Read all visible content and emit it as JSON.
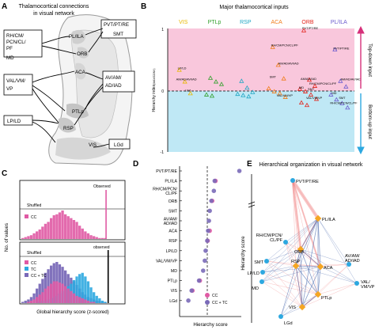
{
  "panels": {
    "a": {
      "letter": "A",
      "title_line1": "Thalamocortical connections",
      "title_line2": "in visual network",
      "thalamic_nuclei": [
        "PVT/PT/RE",
        "SMT",
        "RH/CM/PCN/CL/PF",
        "MD",
        "VAL/VM/VP",
        "AV/AM/AD/IAD",
        "LP/LD",
        "LGd"
      ],
      "cortical_areas": [
        "PL/ILA",
        "ORB",
        "ACA",
        "RSP",
        "PTLp",
        "VIS"
      ]
    },
    "b": {
      "letter": "B",
      "title": "Major thalamocortical inputs",
      "ylabel": "Hierarchy index",
      "ylabel_sub": "(MAX/CONV)",
      "top_label": "Top-down input",
      "bottom_label": "Bottom-up input",
      "colors": {
        "top_band": "#f9c7dc",
        "bottom_band": "#bfe8f5",
        "arrow": "#d6307a",
        "arrow2": "#2da8e0"
      },
      "chart_data": {
        "type": "scatter",
        "ylim": [
          -1,
          1
        ],
        "yticks": [
          "1",
          "0",
          "-1"
        ],
        "grid": false,
        "groups": [
          {
            "name": "VIS",
            "color": "#e8b800"
          },
          {
            "name": "PTLp",
            "color": "#33a02c"
          },
          {
            "name": "RSP",
            "color": "#1fa6c4"
          },
          {
            "name": "ACA",
            "color": "#f07d1a"
          },
          {
            "name": "ORB",
            "color": "#e2231a"
          },
          {
            "name": "PL/ILA",
            "color": "#6a5acd"
          }
        ],
        "point_labels": [
          {
            "text": "LP/LD",
            "group": "VIS",
            "y": 0.3
          },
          {
            "text": "LGd",
            "group": "VIS",
            "y": -0.06
          },
          {
            "text": "AM/AD/AV/IAD",
            "group": "VIS",
            "y": 0.12
          },
          {
            "text": "RH/CM/PCN/CL/PF",
            "group": "ACA",
            "y": 0.67
          },
          {
            "text": "AM/AD/AV/IAD",
            "group": "ACA",
            "y": 0.38
          },
          {
            "text": "SMT",
            "group": "ACA",
            "y": 0.16
          },
          {
            "text": "VAL/VM/VP",
            "group": "ACA",
            "y": -0.14
          },
          {
            "text": "PVT/PT/RE",
            "group": "ORB",
            "y": 0.95
          },
          {
            "text": "RH/CM/PCN/CL/PF",
            "group": "ORB",
            "y": 0.05
          },
          {
            "text": "AM/AD/IAD",
            "group": "ORB",
            "y": 0.13
          },
          {
            "text": "SMT",
            "group": "ORB",
            "y": -0.04
          },
          {
            "text": "MD",
            "group": "ORB",
            "y": -0.01
          },
          {
            "text": "VAL/VM/VP",
            "group": "ORB",
            "y": -0.18
          },
          {
            "text": "PVT/PT/RE",
            "group": "PL/ILA",
            "y": 0.62
          },
          {
            "text": "AM/AD/AV/IAD",
            "group": "PL/ILA",
            "y": 0.12
          },
          {
            "text": "MD",
            "group": "PL/ILA",
            "y": -0.1
          },
          {
            "text": "SMT",
            "group": "PL/ILA",
            "y": -0.18
          },
          {
            "text": "RH/CM/PCN/CL/PF",
            "group": "PL/ILA",
            "y": -0.26
          }
        ],
        "points": [
          {
            "group": "VIS",
            "y": 0.33
          },
          {
            "group": "VIS",
            "y": 0.14
          },
          {
            "group": "VIS",
            "y": -0.05
          },
          {
            "group": "PTLp",
            "y": 0.2
          },
          {
            "group": "PTLp",
            "y": 0.14
          },
          {
            "group": "PTLp",
            "y": 0.1
          },
          {
            "group": "PTLp",
            "y": -0.07
          },
          {
            "group": "PTLp",
            "y": -0.09
          },
          {
            "group": "RSP",
            "y": 0.15
          },
          {
            "group": "RSP",
            "y": 0.04
          },
          {
            "group": "RSP",
            "y": -0.03
          },
          {
            "group": "RSP",
            "y": -0.06
          },
          {
            "group": "RSP",
            "y": -0.08
          },
          {
            "group": "RSP",
            "y": -0.1
          },
          {
            "group": "ACA",
            "y": 0.7
          },
          {
            "group": "ACA",
            "y": 0.41
          },
          {
            "group": "ACA",
            "y": 0.19
          },
          {
            "group": "ACA",
            "y": 0.03
          },
          {
            "group": "ACA",
            "y": -0.02
          },
          {
            "group": "ACA",
            "y": -0.05
          },
          {
            "group": "ACA",
            "y": -0.11
          },
          {
            "group": "ORB",
            "y": 0.97
          },
          {
            "group": "ORB",
            "y": 0.17
          },
          {
            "group": "ORB",
            "y": 0.07
          },
          {
            "group": "ORB",
            "y": 0.02
          },
          {
            "group": "ORB",
            "y": -0.02
          },
          {
            "group": "ORB",
            "y": -0.07
          },
          {
            "group": "ORB",
            "y": -0.14
          },
          {
            "group": "ORB",
            "y": -0.2
          },
          {
            "group": "ORB",
            "y": -0.24
          },
          {
            "group": "PL/ILA",
            "y": 0.66
          },
          {
            "group": "PL/ILA",
            "y": 0.15
          },
          {
            "group": "PL/ILA",
            "y": 0.06
          },
          {
            "group": "PL/ILA",
            "y": -0.07
          },
          {
            "group": "PL/ILA",
            "y": -0.15
          },
          {
            "group": "PL/ILA",
            "y": -0.21
          },
          {
            "group": "PL/ILA",
            "y": -0.28
          }
        ]
      }
    },
    "c": {
      "letter": "C",
      "xlabel": "Global hierarchy score (z-scored)",
      "ylabel": "No. of values",
      "top": {
        "shuffled": "Shuffled",
        "observed": "Observed",
        "legend": [
          "CC"
        ],
        "colors": [
          "#e05aa4"
        ]
      },
      "bottom": {
        "shuffled": "Shuffled",
        "observed": "observed",
        "legend": [
          "CC",
          "TC",
          "CC + TC"
        ],
        "colors": [
          "#e05aa4",
          "#2da8e0",
          "#7a6ab8"
        ]
      },
      "chart_data": [
        {
          "type": "bar",
          "series": [
            {
              "name": "CC",
              "values": [
                1,
                2,
                3,
                4,
                6,
                8,
                10,
                13,
                16,
                18,
                22,
                25,
                26,
                28,
                30,
                26,
                24,
                22,
                20,
                18,
                14,
                11,
                8,
                6,
                4,
                3,
                2,
                1,
                1,
                1
              ]
            }
          ],
          "observed": 0.82
        },
        {
          "type": "bar",
          "series": [
            {
              "name": "CC + TC",
              "values": [
                1,
                2,
                3,
                5,
                8,
                12,
                16,
                20,
                25,
                28,
                31,
                33,
                34,
                32,
                30,
                27,
                24,
                21,
                18,
                15,
                12,
                9,
                7,
                5,
                4,
                3,
                2,
                2,
                1,
                1
              ]
            },
            {
              "name": "TC",
              "values": [
                0,
                0,
                0,
                0,
                0,
                1,
                1,
                2,
                2,
                3,
                4,
                5,
                6,
                8,
                10,
                12,
                14,
                16,
                19,
                22,
                24,
                25,
                22,
                18,
                13,
                9,
                6,
                4,
                2,
                1
              ]
            },
            {
              "name": "CC",
              "values": [
                0,
                0,
                1,
                2,
                3,
                5,
                7,
                9,
                12,
                14,
                16,
                18,
                18,
                17,
                16,
                14,
                12,
                10,
                8,
                6,
                5,
                4,
                3,
                2,
                1,
                1,
                0,
                0,
                0,
                0
              ]
            }
          ],
          "observed": 0.84
        }
      ]
    },
    "d": {
      "letter": "D",
      "xlabel": "Hierarchy score",
      "chart_data": {
        "type": "scatter",
        "categories": [
          "PVT/PT/RE",
          "PL/ILA",
          "RH/CM/PCN/CL/PF",
          "ORB",
          "SMT",
          "AV/AM/AD/IAD",
          "ACA",
          "RSP",
          "LP/LD",
          "VAL/VM/VP",
          "MD",
          "PTLp",
          "VIS",
          "LGd"
        ],
        "series": [
          {
            "name": "CC",
            "color": "#e05aa4",
            "values": [
              null,
              0.2,
              null,
              0.12,
              null,
              null,
              0.06,
              0.01,
              null,
              null,
              null,
              -0.18,
              -0.36,
              null
            ]
          },
          {
            "name": "CC + TC",
            "color": "#7a6ab8",
            "values": [
              0.78,
              0.18,
              0.16,
              0.1,
              0.06,
              0.04,
              0.02,
              0.0,
              -0.04,
              -0.06,
              -0.1,
              -0.2,
              -0.38,
              -0.46
            ]
          }
        ],
        "legend": [
          "CC",
          "CC + TC"
        ]
      }
    },
    "e": {
      "letter": "E",
      "title": "Hierarchical organization in visual network",
      "ylabel": "Hierarchy score",
      "nodes": [
        {
          "label": "PVT/PT/RE",
          "kind": "thalamus"
        },
        {
          "label": "PL/ILA",
          "kind": "cortex"
        },
        {
          "label": "RH/CM/PCN/CL/PF",
          "kind": "thalamus"
        },
        {
          "label": "ORB",
          "kind": "cortex"
        },
        {
          "label": "SMT",
          "kind": "thalamus"
        },
        {
          "label": "RSP",
          "kind": "cortex"
        },
        {
          "label": "ACA",
          "kind": "cortex"
        },
        {
          "label": "LP/LD",
          "kind": "thalamus"
        },
        {
          "label": "MD",
          "kind": "thalamus"
        },
        {
          "label": "AV/AM/AD/IAD",
          "kind": "thalamus"
        },
        {
          "label": "VAL/VM/VP",
          "kind": "thalamus"
        },
        {
          "label": "PTLp",
          "kind": "cortex"
        },
        {
          "label": "VIS",
          "kind": "cortex"
        },
        {
          "label": "LGd",
          "kind": "thalamus"
        }
      ],
      "colors": {
        "thalamus": "#2da8e0",
        "cortex": "#f5a623",
        "ff": "#f08080",
        "fb": "#3d5fa8"
      }
    }
  }
}
